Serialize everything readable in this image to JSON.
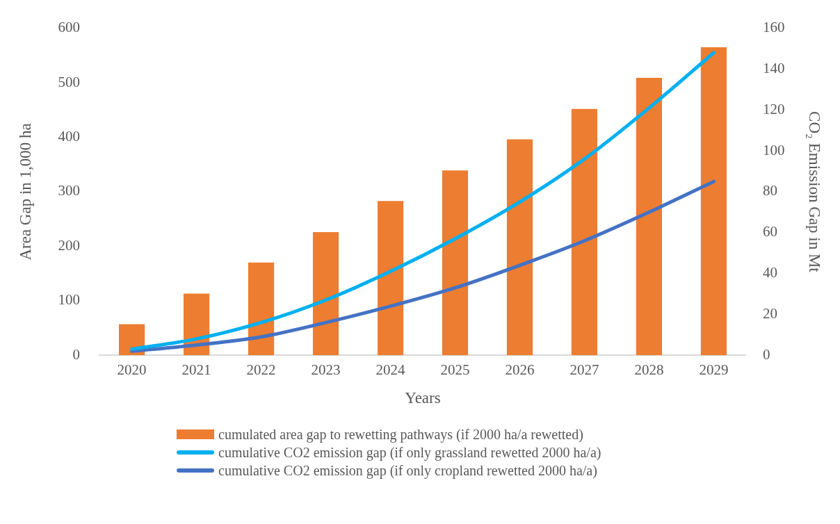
{
  "chart_data": {
    "type": "bar",
    "xlabel": "Years",
    "ylabel": "Area Gap in 1,000 ha",
    "y2label": "CO₂ Emission Gap in Mt",
    "categories": [
      "2020",
      "2021",
      "2022",
      "2023",
      "2024",
      "2025",
      "2026",
      "2027",
      "2028",
      "2029"
    ],
    "series": [
      {
        "name": "cumulated area gap to rewetting pathways (if 2000 ha/a rewetted)",
        "color": "#ed7d31",
        "values": [
          57,
          113,
          170,
          226,
          283,
          339,
          396,
          452,
          509,
          565
        ]
      },
      {
        "name": "cumulative CO2 emission gap (if only grassland rewetted 2000 ha/a)",
        "type": "line",
        "axis": "y2",
        "color": "#00b0f0",
        "values": [
          3,
          8,
          16,
          27,
          41,
          57,
          75,
          96,
          121,
          148
        ]
      },
      {
        "name": "cumulative CO2 emission gap (if only cropland rewetted 2000 ha/a)",
        "type": "line",
        "axis": "y2",
        "color": "#4472c4",
        "values": [
          2,
          5,
          9,
          16,
          24,
          33,
          44,
          56,
          70,
          85
        ]
      }
    ],
    "ylim": [
      0,
      600
    ],
    "yticks": [
      0,
      100,
      200,
      300,
      400,
      500,
      600
    ],
    "y2lim": [
      0,
      160
    ],
    "y2ticks": [
      0,
      20,
      40,
      60,
      80,
      100,
      120,
      140,
      160
    ],
    "grid": false,
    "legend": "bottom",
    "marker": "none"
  }
}
